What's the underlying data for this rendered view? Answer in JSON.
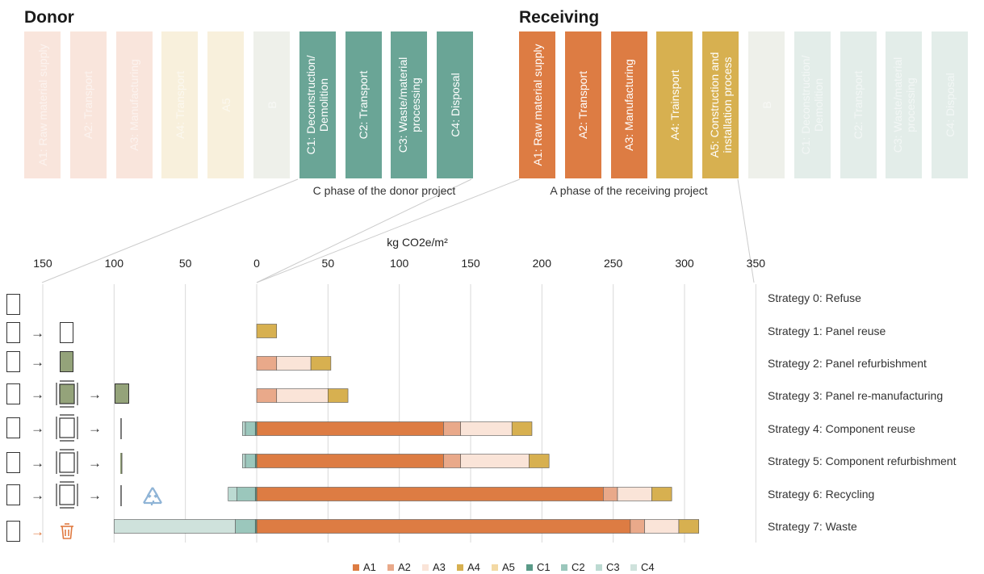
{
  "header": {
    "donor_title": "Donor",
    "receiving_title": "Receiving",
    "donor_caption": "C phase of the donor project",
    "receiving_caption": "A phase of the receiving project"
  },
  "donor_phases": [
    {
      "label": "A1: Raw material supply",
      "color": "#f9e5dc",
      "faded": true
    },
    {
      "label": "A2: Transport",
      "color": "#f9e5dc",
      "faded": true
    },
    {
      "label": "A3: Manufacturing",
      "color": "#f9e5dc",
      "faded": true
    },
    {
      "label": "A4: Transport",
      "color": "#f8f0dc",
      "faded": true
    },
    {
      "label": "A5",
      "color": "#f8f0dc",
      "faded": true
    },
    {
      "label": "B",
      "color": "#eef0ea",
      "faded": true
    },
    {
      "label": "C1: Deconstruction/ Demolition",
      "color": "#6aa596",
      "faded": false
    },
    {
      "label": "C2: Transport",
      "color": "#6aa596",
      "faded": false
    },
    {
      "label": "C3: Waste/material processing",
      "color": "#6aa596",
      "faded": false
    },
    {
      "label": "C4: Disposal",
      "color": "#6aa596",
      "faded": false
    }
  ],
  "receiving_phases": [
    {
      "label": "A1: Raw material supply",
      "color": "#dd7c43",
      "faded": false
    },
    {
      "label": "A2: Transport",
      "color": "#dd7c43",
      "faded": false
    },
    {
      "label": "A3: Manufacturing",
      "color": "#dd7c43",
      "faded": false
    },
    {
      "label": "A4: Trainsport",
      "color": "#d7b050",
      "faded": false
    },
    {
      "label": "A5: Construction and installation process",
      "color": "#d7b050",
      "faded": false
    },
    {
      "label": "B",
      "color": "#eef0ea",
      "faded": true
    },
    {
      "label": "C1: Deconstruction/ Demolition",
      "color": "#e3ede9",
      "faded": true
    },
    {
      "label": "C2: Transport",
      "color": "#e3ede9",
      "faded": true
    },
    {
      "label": "C3: Waste/material processing",
      "color": "#e3ede9",
      "faded": true
    },
    {
      "label": "C4: Disposal",
      "color": "#e3ede9",
      "faded": true
    }
  ],
  "colors": {
    "A1": "#dd7c43",
    "A2": "#e9a98a",
    "A3": "#fae4d8",
    "A4": "#d7b050",
    "A5": "#f3d9a4",
    "C1": "#5a9a88",
    "C2": "#9bc7bc",
    "C3": "#bcdad2",
    "C4": "#cfe2dc",
    "panel_fill": "#94a37a",
    "waste_icon": "#e07a40",
    "recycle_icon": "#8fb4d6"
  },
  "chart_data": {
    "type": "bar",
    "orientation": "horizontal-stacked-diverging",
    "title": "",
    "xlabel": "kg CO2e/m²",
    "ylabel": "",
    "xlim": [
      -150,
      350
    ],
    "x_tick_labels": [
      "150",
      "100",
      "50",
      "0",
      "50",
      "100",
      "150",
      "200",
      "250",
      "300",
      "350"
    ],
    "x_tick_values": [
      -150,
      -100,
      -50,
      0,
      50,
      100,
      150,
      200,
      250,
      300,
      350
    ],
    "grid": true,
    "legend_position": "bottom",
    "legend": [
      "A1",
      "A2",
      "A3",
      "A4",
      "A5",
      "C1",
      "C2",
      "C3",
      "C4"
    ],
    "categories": [
      "Strategy 0: Refuse",
      "Strategy 1: Panel reuse",
      "Strategy 2: Panel refurbishment",
      "Strategy 3: Panel re-manufacturing",
      "Strategy 4: Component reuse",
      "Strategy 5: Component refurbishment",
      "Strategy 6: Recycling",
      "Strategy 7: Waste"
    ],
    "series": [
      {
        "name": "A1",
        "values": [
          0,
          0,
          0,
          0,
          131,
          131,
          243,
          262
        ]
      },
      {
        "name": "A2",
        "values": [
          0,
          0,
          14,
          14,
          12,
          12,
          10,
          10
        ]
      },
      {
        "name": "A3",
        "values": [
          0,
          0,
          24,
          36,
          36,
          48,
          24,
          24
        ]
      },
      {
        "name": "A4",
        "values": [
          0,
          14,
          14,
          14,
          14,
          14,
          14,
          14
        ]
      },
      {
        "name": "A5",
        "values": [
          0,
          0,
          0,
          0,
          0,
          0,
          0,
          0
        ]
      },
      {
        "name": "C1",
        "values": [
          0,
          0,
          0,
          0,
          -1,
          -1,
          -1,
          -1
        ]
      },
      {
        "name": "C2",
        "values": [
          0,
          0,
          0,
          0,
          -7,
          -7,
          -13,
          -14
        ]
      },
      {
        "name": "C3",
        "values": [
          0,
          0,
          0,
          0,
          -2,
          -2,
          -6,
          0
        ]
      },
      {
        "name": "C4",
        "values": [
          0,
          0,
          0,
          0,
          0,
          0,
          0,
          -85
        ]
      }
    ]
  }
}
